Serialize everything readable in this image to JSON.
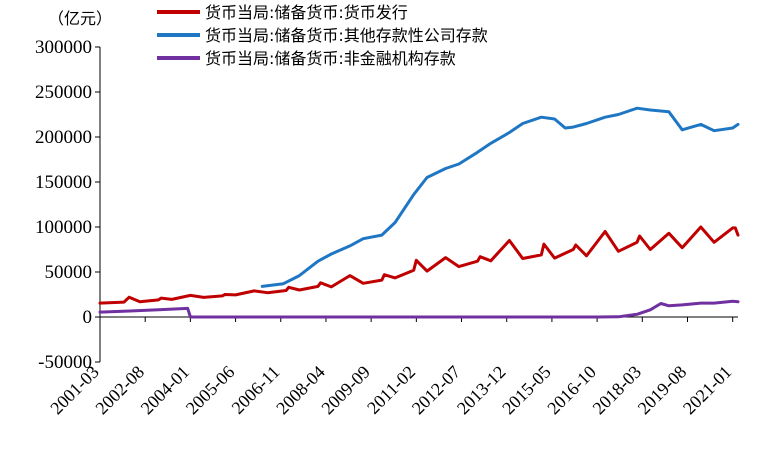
{
  "chart_data": {
    "type": "line",
    "unit_label": "（亿元）",
    "ylim": [
      -50000,
      300000
    ],
    "y_ticks": [
      -50000,
      0,
      50000,
      100000,
      150000,
      200000,
      250000,
      300000
    ],
    "y_tick_labels": [
      "-50000",
      "0",
      "50000",
      "100000",
      "150000",
      "200000",
      "250000",
      "300000"
    ],
    "x_range": [
      "2001-03",
      "2021-03"
    ],
    "x_tick_labels": [
      "2001-03",
      "2002-08",
      "2004-01",
      "2005-06",
      "2006-11",
      "2008-04",
      "2009-09",
      "2011-02",
      "2012-07",
      "2013-12",
      "2015-05",
      "2016-10",
      "2018-03",
      "2019-08",
      "2021-01"
    ],
    "legend_position": "top",
    "grid": false,
    "series": [
      {
        "name": "货币当局:储备货币:货币发行",
        "color": "#c00000",
        "points": [
          [
            "2001-03",
            15500
          ],
          [
            "2001-12",
            16500
          ],
          [
            "2002-06",
            17000
          ],
          [
            "2003-01",
            19000
          ],
          [
            "2003-06",
            19500
          ],
          [
            "2004-01",
            21500
          ],
          [
            "2004-06",
            21800
          ],
          [
            "2005-01",
            23500
          ],
          [
            "2005-06",
            24500
          ],
          [
            "2006-01",
            27500
          ],
          [
            "2006-06",
            27000
          ],
          [
            "2007-01",
            29500
          ],
          [
            "2007-06",
            30000
          ],
          [
            "2008-01",
            34000
          ],
          [
            "2008-06",
            33500
          ],
          [
            "2009-01",
            38000
          ],
          [
            "2009-06",
            37500
          ],
          [
            "2010-01",
            41000
          ],
          [
            "2010-06",
            43500
          ],
          [
            "2011-01",
            52000
          ],
          [
            "2011-06",
            51000
          ],
          [
            "2012-01",
            61000
          ],
          [
            "2012-06",
            56000
          ],
          [
            "2013-01",
            62000
          ],
          [
            "2013-06",
            62500
          ],
          [
            "2014-01",
            72000
          ],
          [
            "2014-06",
            65000
          ],
          [
            "2015-01",
            69000
          ],
          [
            "2015-06",
            65500
          ],
          [
            "2016-01",
            75000
          ],
          [
            "2016-06",
            68000
          ],
          [
            "2017-01",
            86000
          ],
          [
            "2017-06",
            73000
          ],
          [
            "2018-01",
            83000
          ],
          [
            "2018-06",
            75000
          ],
          [
            "2019-01",
            87000
          ],
          [
            "2019-06",
            77000
          ],
          [
            "2020-01",
            92000
          ],
          [
            "2020-06",
            83000
          ],
          [
            "2021-01",
            99000
          ],
          [
            "2021-03",
            91000
          ]
        ],
        "spikes": [
          [
            "2002-02",
            22000
          ],
          [
            "2003-02",
            21000
          ],
          [
            "2004-01",
            24000
          ],
          [
            "2005-02",
            25000
          ],
          [
            "2006-01",
            29000
          ],
          [
            "2007-02",
            33000
          ],
          [
            "2008-02",
            38000
          ],
          [
            "2009-01",
            46000
          ],
          [
            "2010-02",
            47000
          ],
          [
            "2011-02",
            63000
          ],
          [
            "2012-01",
            66000
          ],
          [
            "2013-02",
            67000
          ],
          [
            "2014-01",
            85000
          ],
          [
            "2015-02",
            81000
          ],
          [
            "2016-02",
            80000
          ],
          [
            "2017-01",
            95000
          ],
          [
            "2018-02",
            90000
          ],
          [
            "2019-01",
            93000
          ],
          [
            "2020-01",
            100000
          ],
          [
            "2021-02",
            99000
          ]
        ]
      },
      {
        "name": "货币当局:储备货币:其他存款性公司存款",
        "color": "#1f77c4",
        "points": [
          [
            "2006-04",
            34000
          ],
          [
            "2006-12",
            37000
          ],
          [
            "2007-06",
            46000
          ],
          [
            "2008-01",
            62000
          ],
          [
            "2008-06",
            70000
          ],
          [
            "2009-01",
            79000
          ],
          [
            "2009-06",
            87000
          ],
          [
            "2010-01",
            91000
          ],
          [
            "2010-06",
            105000
          ],
          [
            "2011-01",
            136000
          ],
          [
            "2011-06",
            155000
          ],
          [
            "2012-01",
            165000
          ],
          [
            "2012-06",
            170000
          ],
          [
            "2013-01",
            183000
          ],
          [
            "2013-06",
            193000
          ],
          [
            "2014-01",
            205000
          ],
          [
            "2014-06",
            215000
          ],
          [
            "2015-01",
            222000
          ],
          [
            "2015-06",
            220000
          ],
          [
            "2015-10",
            210000
          ],
          [
            "2016-01",
            211000
          ],
          [
            "2016-06",
            215000
          ],
          [
            "2017-01",
            222000
          ],
          [
            "2017-06",
            225000
          ],
          [
            "2018-01",
            232000
          ],
          [
            "2018-06",
            230000
          ],
          [
            "2019-01",
            228000
          ],
          [
            "2019-06",
            208000
          ],
          [
            "2020-01",
            214000
          ],
          [
            "2020-06",
            207000
          ],
          [
            "2021-01",
            210000
          ],
          [
            "2021-03",
            214000
          ]
        ]
      },
      {
        "name": "货币当局:储备货币:非金融机构存款",
        "color": "#7030a0",
        "points": [
          [
            "2001-03",
            5500
          ],
          [
            "2002-01",
            6500
          ],
          [
            "2003-01",
            8000
          ],
          [
            "2003-12",
            9500
          ],
          [
            "2004-01",
            0
          ],
          [
            "2008-02",
            0
          ],
          [
            "2016-10",
            0
          ],
          [
            "2017-06",
            200
          ],
          [
            "2018-01",
            3000
          ],
          [
            "2018-06",
            8000
          ],
          [
            "2018-10",
            15000
          ],
          [
            "2019-01",
            12500
          ],
          [
            "2019-06",
            13500
          ],
          [
            "2020-01",
            15500
          ],
          [
            "2020-06",
            15500
          ],
          [
            "2021-01",
            17500
          ],
          [
            "2021-03",
            17000
          ]
        ]
      }
    ]
  }
}
